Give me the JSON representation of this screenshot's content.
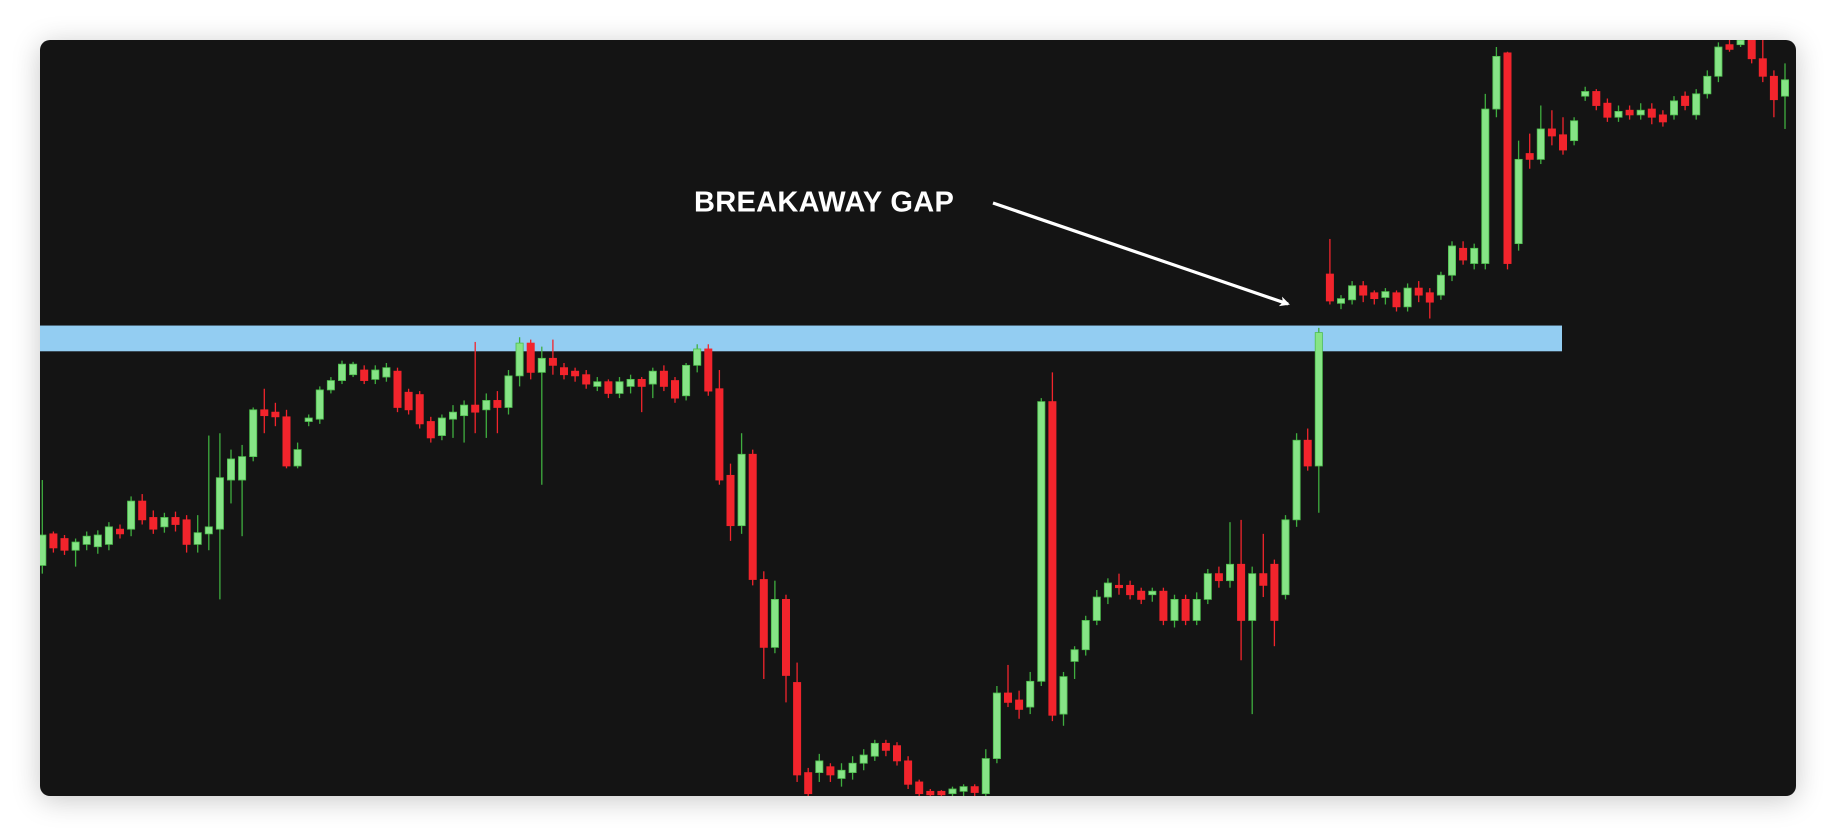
{
  "chart_data": {
    "type": "candlestick",
    "annotation": "BREAKAWAY GAP",
    "up_color": "#86e486",
    "down_color": "#f2242c",
    "background": "#141414",
    "ylim": [
      0,
      646
    ],
    "band": {
      "range": [
        380,
        402
      ],
      "color": "#93cdf2"
    },
    "open": [
      197,
      224,
      220,
      210,
      215,
      213,
      215,
      228,
      228,
      252,
      238,
      230,
      238,
      236,
      215,
      224,
      228,
      270,
      270,
      290,
      330,
      328,
      324,
      282,
      320,
      322,
      347,
      355,
      360,
      364,
      356,
      358,
      363,
      345,
      343,
      320,
      308,
      322,
      325,
      334,
      330,
      338,
      332,
      359,
      387,
      362,
      374,
      366,
      363,
      360,
      350,
      354,
      344,
      350,
      356,
      352,
      363,
      355,
      342,
      368,
      382,
      348,
      274,
      231,
      292,
      185,
      127,
      168,
      97,
      20,
      20,
      25,
      15,
      20,
      28,
      34,
      45,
      43,
      30,
      12,
      4,
      4,
      2,
      4,
      8,
      2,
      32,
      88,
      82,
      76,
      98,
      337,
      70,
      115,
      125,
      150,
      170,
      180,
      180,
      175,
      172,
      175,
      150,
      168,
      150,
      168,
      190,
      184,
      198,
      150,
      190,
      198,
      172,
      236,
      304,
      282,
      446,
      421,
      424,
      436,
      430,
      426,
      430,
      418,
      434,
      430,
      428,
      445,
      468,
      455,
      455,
      587,
      635,
      472,
      549,
      544,
      570,
      565,
      560,
      598,
      602,
      592,
      580,
      586,
      582,
      587,
      582,
      582,
      598,
      582,
      600,
      615,
      642,
      642,
      646,
      630,
      615,
      598
    ],
    "high": [
      270,
      226,
      223,
      220,
      226,
      227,
      234,
      232,
      256,
      258,
      244,
      242,
      243,
      240,
      240,
      308,
      310,
      296,
      300,
      332,
      348,
      336,
      330,
      302,
      326,
      350,
      358,
      372,
      371,
      368,
      368,
      370,
      366,
      348,
      346,
      324,
      326,
      334,
      338,
      388,
      344,
      346,
      364,
      392,
      390,
      384,
      390,
      370,
      366,
      364,
      358,
      356,
      358,
      360,
      358,
      366,
      368,
      358,
      370,
      386,
      386,
      364,
      284,
      310,
      296,
      192,
      184,
      172,
      114,
      24,
      36,
      28,
      28,
      34,
      40,
      48,
      48,
      46,
      34,
      14,
      6,
      5,
      8,
      10,
      10,
      40,
      94,
      112,
      90,
      106,
      340,
      362,
      106,
      128,
      154,
      176,
      186,
      190,
      184,
      178,
      178,
      178,
      172,
      172,
      174,
      194,
      196,
      234,
      236,
      196,
      224,
      202,
      240,
      310,
      314,
      400,
      476,
      428,
      440,
      440,
      432,
      434,
      432,
      438,
      440,
      434,
      448,
      474,
      474,
      472,
      600,
      640,
      636,
      560,
      566,
      590,
      586,
      580,
      580,
      606,
      604,
      596,
      590,
      590,
      592,
      592,
      586,
      598,
      602,
      604,
      620,
      644,
      646,
      646,
      646,
      646,
      620,
      626
    ],
    "low": [
      190,
      208,
      206,
      196,
      210,
      207,
      210,
      220,
      222,
      232,
      224,
      225,
      226,
      208,
      208,
      210,
      168,
      250,
      222,
      286,
      310,
      316,
      280,
      280,
      316,
      318,
      344,
      352,
      358,
      352,
      352,
      354,
      328,
      326,
      314,
      302,
      304,
      306,
      302,
      310,
      306,
      310,
      326,
      350,
      356,
      266,
      360,
      356,
      354,
      348,
      346,
      340,
      340,
      344,
      328,
      340,
      346,
      336,
      338,
      362,
      342,
      266,
      218,
      224,
      180,
      100,
      122,
      80,
      12,
      0,
      12,
      12,
      8,
      14,
      22,
      30,
      34,
      26,
      6,
      0,
      0,
      0,
      0,
      0,
      0,
      0,
      28,
      76,
      66,
      70,
      94,
      64,
      60,
      100,
      120,
      146,
      164,
      172,
      168,
      164,
      166,
      146,
      144,
      146,
      146,
      164,
      178,
      178,
      116,
      70,
      170,
      128,
      168,
      230,
      278,
      242,
      420,
      416,
      420,
      422,
      420,
      420,
      414,
      414,
      422,
      408,
      424,
      440,
      454,
      450,
      450,
      580,
      450,
      466,
      536,
      540,
      556,
      548,
      556,
      594,
      586,
      576,
      576,
      578,
      578,
      574,
      572,
      578,
      586,
      578,
      596,
      610,
      636,
      640,
      626,
      610,
      580,
      570
    ],
    "close": [
      223,
      212,
      210,
      217,
      222,
      223,
      230,
      224,
      252,
      236,
      228,
      238,
      232,
      215,
      225,
      230,
      272,
      288,
      290,
      330,
      325,
      324,
      282,
      296,
      323,
      347,
      355,
      369,
      369,
      355,
      364,
      366,
      332,
      330,
      318,
      306,
      323,
      328,
      334,
      328,
      338,
      332,
      359,
      387,
      362,
      374,
      368,
      360,
      359,
      352,
      354,
      344,
      354,
      356,
      350,
      363,
      350,
      340,
      368,
      382,
      346,
      270,
      231,
      292,
      185,
      127,
      168,
      103,
      18,
      2,
      30,
      18,
      22,
      28,
      35,
      45,
      39,
      30,
      10,
      2,
      1,
      1,
      6,
      8,
      3,
      32,
      88,
      80,
      74,
      98,
      337,
      69,
      102,
      125,
      150,
      170,
      182,
      178,
      172,
      168,
      175,
      150,
      168,
      150,
      168,
      190,
      184,
      198,
      150,
      190,
      180,
      150,
      236,
      304,
      282,
      396,
      423,
      425,
      436,
      428,
      425,
      431,
      418,
      434,
      428,
      422,
      445,
      470,
      458,
      468,
      587,
      632,
      455,
      544,
      544,
      570,
      564,
      552,
      577,
      602,
      590,
      580,
      585,
      582,
      586,
      580,
      576,
      594,
      590,
      600,
      615,
      640,
      638,
      646,
      630,
      615,
      595,
      612
    ]
  }
}
